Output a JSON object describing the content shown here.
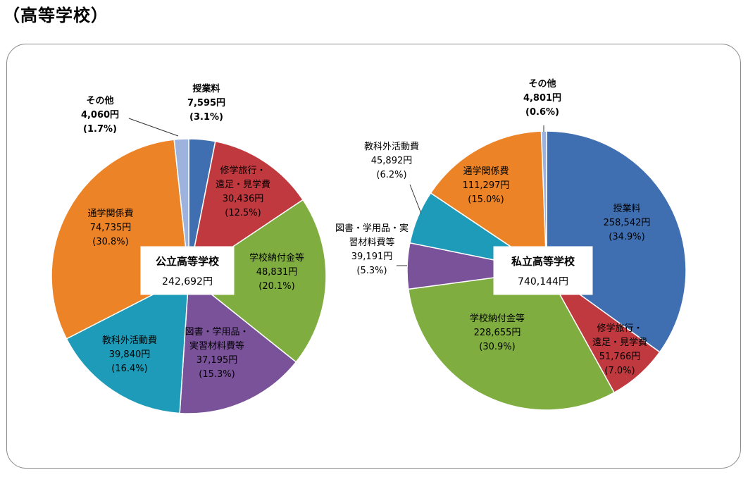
{
  "heading": "（高等学校）",
  "chart_data": [
    {
      "type": "pie",
      "center_label": "公立高等学校",
      "center_total": "242,692円",
      "slices": [
        {
          "name": "授業料",
          "amount": "7,595円",
          "percent_label": "(3.1%)",
          "value": 3.1,
          "color": "#3f6fb0"
        },
        {
          "name": "修学旅行・遠足・見学費",
          "name_lines": [
            "修学旅行・",
            "遠足・見学費"
          ],
          "amount": "30,436円",
          "percent_label": "(12.5%)",
          "value": 12.5,
          "color": "#c0393f"
        },
        {
          "name": "学校納付金等",
          "amount": "48,831円",
          "percent_label": "(20.1%)",
          "value": 20.1,
          "color": "#7fad3f"
        },
        {
          "name": "図書・学用品・実習材料費等",
          "name_lines": [
            "図書・学用品・",
            "実習材料費等"
          ],
          "amount": "37,195円",
          "percent_label": "(15.3%)",
          "value": 15.3,
          "color": "#7a529a"
        },
        {
          "name": "教科外活動費",
          "amount": "39,840円",
          "percent_label": "(16.4%)",
          "value": 16.4,
          "color": "#1e9bb8"
        },
        {
          "name": "通学関係費",
          "amount": "74,735円",
          "percent_label": "(30.8%)",
          "value": 30.8,
          "color": "#ec8427"
        },
        {
          "name": "その他",
          "amount": "4,060円",
          "percent_label": "(1.7%)",
          "value": 1.7,
          "color": "#9db3de"
        }
      ]
    },
    {
      "type": "pie",
      "center_label": "私立高等学校",
      "center_total": "740,144円",
      "slices": [
        {
          "name": "授業料",
          "amount": "258,542円",
          "percent_label": "(34.9%)",
          "value": 34.9,
          "color": "#3f6fb0"
        },
        {
          "name": "修学旅行・遠足・見学費",
          "name_lines": [
            "修学旅行・",
            "遠足・見学費"
          ],
          "amount": "51,766円",
          "percent_label": "(7.0%)",
          "value": 7.0,
          "color": "#c0393f"
        },
        {
          "name": "学校納付金等",
          "amount": "228,655円",
          "percent_label": "(30.9%)",
          "value": 30.9,
          "color": "#7fad3f"
        },
        {
          "name": "図書・学用品・実習材料費等",
          "name_lines": [
            "図書・学用品・実",
            "習材料費等"
          ],
          "amount": "39,191円",
          "percent_label": "(5.3%)",
          "value": 5.3,
          "color": "#7a529a"
        },
        {
          "name": "教科外活動費",
          "amount": "45,892円",
          "percent_label": "(6.2%)",
          "value": 6.2,
          "color": "#1e9bb8"
        },
        {
          "name": "通学関係費",
          "amount": "111,297円",
          "percent_label": "(15.0%)",
          "value": 15.0,
          "color": "#ec8427"
        },
        {
          "name": "その他",
          "amount": "4,801円",
          "percent_label": "(0.6%)",
          "value": 0.6,
          "color": "#9db3de"
        }
      ]
    }
  ]
}
